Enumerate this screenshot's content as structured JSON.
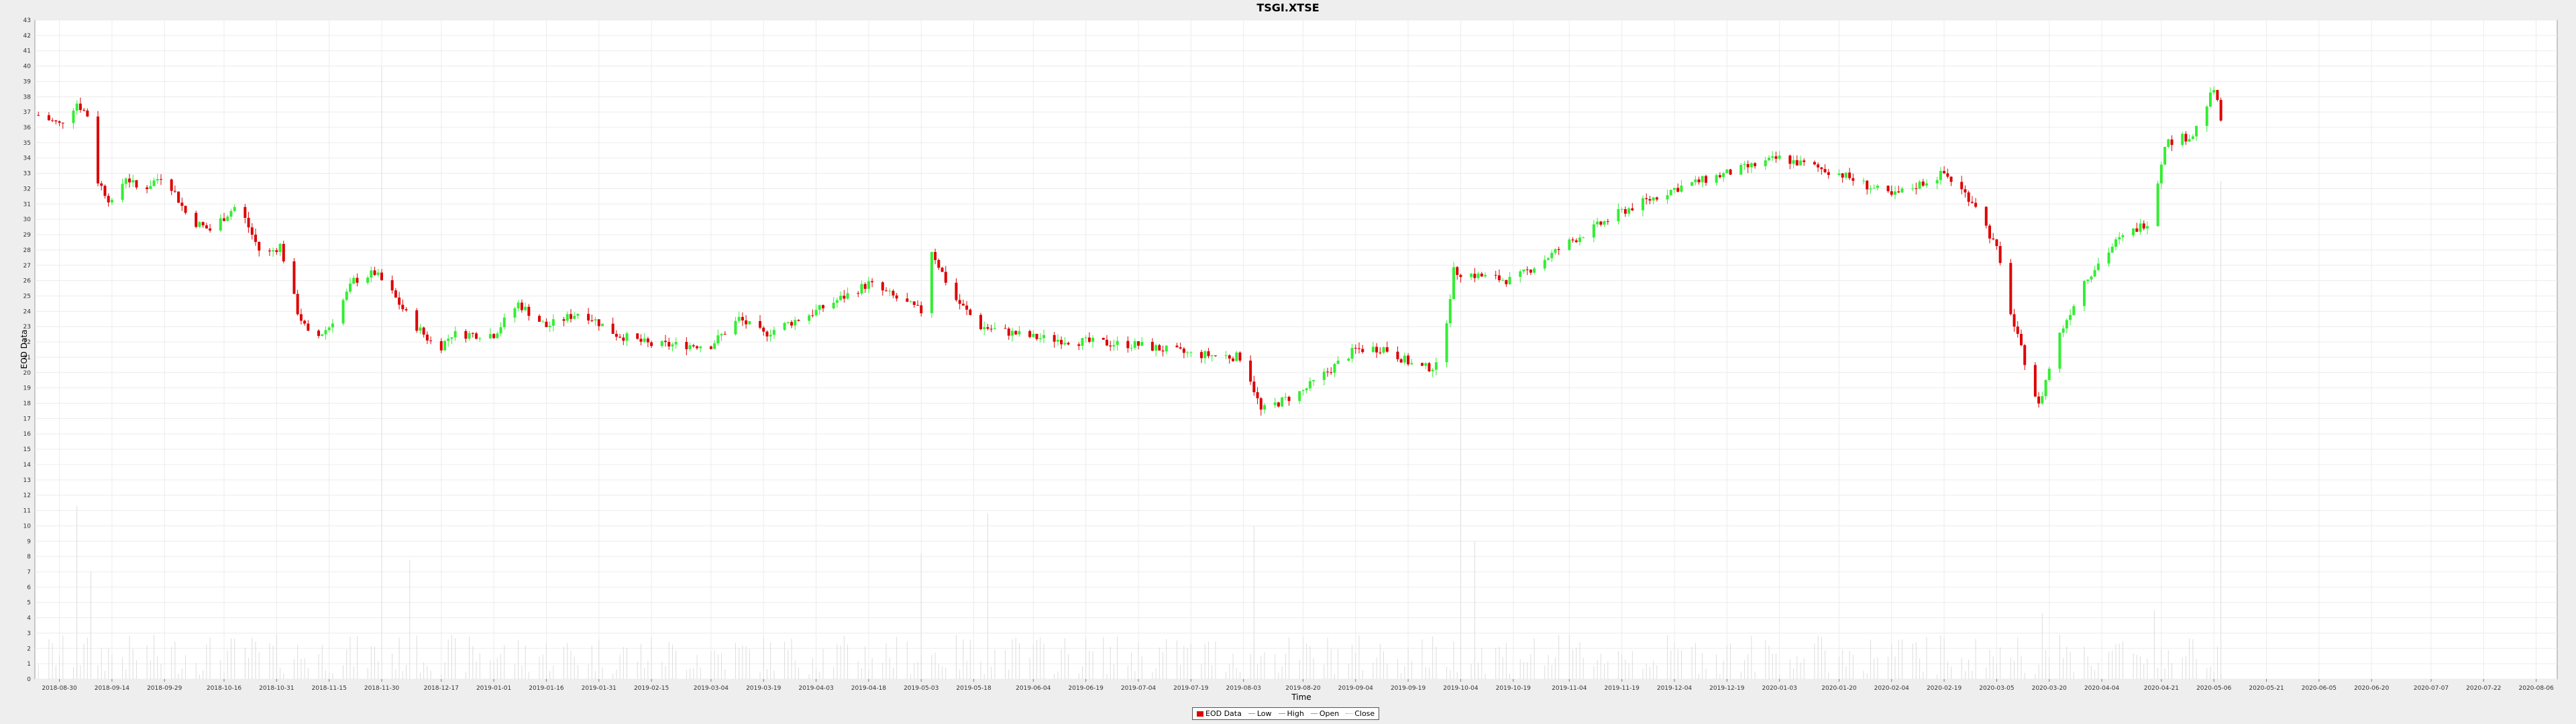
{
  "chart_data": {
    "type": "candlestick",
    "title": "TSGI.XTSE",
    "xlabel": "Time",
    "ylabel": "EOD Data",
    "ylim": [
      0,
      43
    ],
    "grid": true,
    "legend_position": "bottom",
    "legend": [
      "EOD Data",
      "Low",
      "High",
      "Open",
      "Close"
    ],
    "colors": {
      "up": "#33ee33",
      "down": "#dd0000",
      "volume": "#dddddd"
    },
    "x_ticks": [
      "2018-08-30",
      "2018-09-14",
      "2018-09-29",
      "2018-10-16",
      "2018-10-31",
      "2018-11-15",
      "2018-11-30",
      "2018-12-17",
      "2019-01-01",
      "2019-01-16",
      "2019-01-31",
      "2019-02-15",
      "2019-03-04",
      "2019-03-19",
      "2019-04-03",
      "2019-04-18",
      "2019-05-03",
      "2019-05-18",
      "2019-06-04",
      "2019-06-19",
      "2019-07-04",
      "2019-07-19",
      "2019-08-03",
      "2019-08-20",
      "2019-09-04",
      "2019-09-19",
      "2019-10-04",
      "2019-10-19",
      "2019-11-04",
      "2019-11-19",
      "2019-12-04",
      "2019-12-19",
      "2020-01-03",
      "2020-01-20",
      "2020-02-04",
      "2020-02-19",
      "2020-03-05",
      "2020-03-20",
      "2020-04-04",
      "2020-04-21",
      "2020-05-06",
      "2020-05-21",
      "2020-06-05",
      "2020-06-20",
      "2020-07-07",
      "2020-07-22",
      "2020-08-06"
    ],
    "y_ticks": [
      0,
      1,
      2,
      3,
      4,
      5,
      6,
      7,
      8,
      9,
      10,
      11,
      12,
      13,
      14,
      15,
      16,
      17,
      18,
      19,
      20,
      21,
      22,
      23,
      24,
      25,
      26,
      27,
      28,
      29,
      30,
      31,
      32,
      33,
      34,
      35,
      36,
      37,
      38,
      39,
      40,
      41,
      42,
      43
    ],
    "price_path": [
      [
        "2018-08-24",
        36.8
      ],
      [
        "2018-08-30",
        36.2
      ],
      [
        "2018-09-04",
        37.6
      ],
      [
        "2018-09-07",
        36.8
      ],
      [
        "2018-09-10",
        32.5
      ],
      [
        "2018-09-14",
        31.0
      ],
      [
        "2018-09-18",
        32.8
      ],
      [
        "2018-09-22",
        31.8
      ],
      [
        "2018-09-29",
        33.0
      ],
      [
        "2018-10-06",
        30.0
      ],
      [
        "2018-10-12",
        29.3
      ],
      [
        "2018-10-20",
        31.0
      ],
      [
        "2018-10-27",
        27.5
      ],
      [
        "2018-11-01",
        28.3
      ],
      [
        "2018-11-06",
        24.0
      ],
      [
        "2018-11-10",
        22.0
      ],
      [
        "2018-11-15",
        23.0
      ],
      [
        "2018-11-22",
        26.0
      ],
      [
        "2018-11-28",
        26.5
      ],
      [
        "2018-12-02",
        25.5
      ],
      [
        "2018-12-08",
        23.5
      ],
      [
        "2018-12-16",
        21.5
      ],
      [
        "2018-12-20",
        22.5
      ],
      [
        "2019-01-01",
        22.5
      ],
      [
        "2019-01-08",
        24.5
      ],
      [
        "2019-01-16",
        23.0
      ],
      [
        "2019-01-26",
        24.0
      ],
      [
        "2019-02-05",
        22.5
      ],
      [
        "2019-02-15",
        21.8
      ],
      [
        "2019-03-04",
        21.8
      ],
      [
        "2019-03-12",
        23.5
      ],
      [
        "2019-03-19",
        22.5
      ],
      [
        "2019-04-03",
        24.0
      ],
      [
        "2019-04-18",
        25.8
      ],
      [
        "2019-05-03",
        24.0
      ],
      [
        "2019-05-06",
        28.0
      ],
      [
        "2019-05-12",
        25.0
      ],
      [
        "2019-05-20",
        23.0
      ],
      [
        "2019-06-04",
        22.3
      ],
      [
        "2019-06-19",
        22.0
      ],
      [
        "2019-07-04",
        21.8
      ],
      [
        "2019-07-19",
        21.2
      ],
      [
        "2019-08-03",
        21.0
      ],
      [
        "2019-08-08",
        17.5
      ],
      [
        "2019-08-20",
        18.8
      ],
      [
        "2019-09-04",
        21.5
      ],
      [
        "2019-09-12",
        21.6
      ],
      [
        "2019-09-22",
        20.3
      ],
      [
        "2019-09-28",
        20.4
      ],
      [
        "2019-10-02",
        26.6
      ],
      [
        "2019-10-12",
        26.2
      ],
      [
        "2019-10-19",
        26.0
      ],
      [
        "2019-11-04",
        28.5
      ],
      [
        "2019-11-19",
        30.5
      ],
      [
        "2019-12-04",
        32.0
      ],
      [
        "2019-12-19",
        33.0
      ],
      [
        "2020-01-03",
        34.0
      ],
      [
        "2020-01-20",
        33.0
      ],
      [
        "2020-02-04",
        31.5
      ],
      [
        "2020-02-19",
        33.0
      ],
      [
        "2020-02-28",
        31.0
      ],
      [
        "2020-03-05",
        28.0
      ],
      [
        "2020-03-10",
        23.0
      ],
      [
        "2020-03-17",
        17.8
      ],
      [
        "2020-03-22",
        22.0
      ],
      [
        "2020-03-30",
        26.0
      ],
      [
        "2020-04-08",
        28.5
      ],
      [
        "2020-04-18",
        30.0
      ],
      [
        "2020-04-22",
        35.0
      ],
      [
        "2020-04-30",
        35.5
      ],
      [
        "2020-05-06",
        38.5
      ],
      [
        "2020-05-08",
        36.5
      ]
    ],
    "volume_spikes": [
      [
        "2018-09-04",
        11.3
      ],
      [
        "2018-09-08",
        7.0
      ],
      [
        "2018-11-30",
        40.0
      ],
      [
        "2018-12-08",
        7.8
      ],
      [
        "2019-05-03",
        8.2
      ],
      [
        "2019-05-22",
        10.8
      ],
      [
        "2019-08-06",
        10.0
      ],
      [
        "2019-10-04",
        20.0
      ],
      [
        "2019-10-08",
        9.0
      ],
      [
        "2020-03-18",
        4.3
      ],
      [
        "2020-04-19",
        4.5
      ],
      [
        "2020-05-08",
        32.5
      ]
    ],
    "x_range": [
      "2018-08-23",
      "2020-08-12"
    ],
    "data_end": "2020-05-11"
  }
}
